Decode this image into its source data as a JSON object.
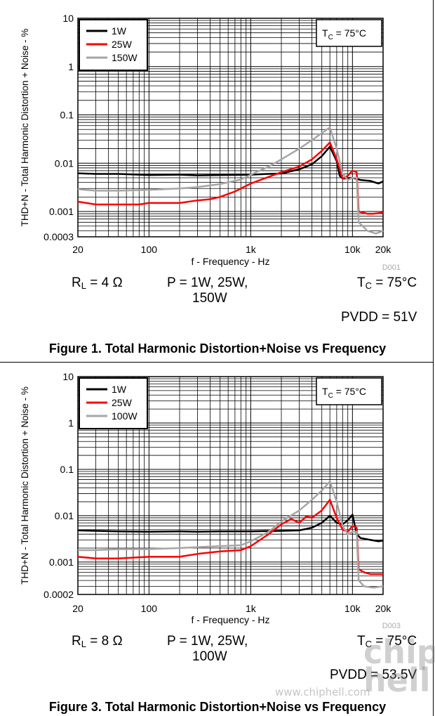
{
  "chart_data": [
    {
      "type": "line",
      "xscale": "log",
      "yscale": "log",
      "xlim": [
        20,
        20000
      ],
      "ylim": [
        0.0003,
        10
      ],
      "xticks": [
        "20",
        "100",
        "1k",
        "10k",
        "20k"
      ],
      "yticks": [
        "10",
        "1",
        "0.1",
        "0.01",
        "0.001",
        "0.0003"
      ],
      "xlabel": "f - Frequency - Hz",
      "ylabel": "THD+N - Total Harmonic Distortion + Noise - %",
      "legend": [
        "1W",
        "25W",
        "150W"
      ],
      "legend_position": "top-left",
      "annotation": "T_C = 75°C",
      "code": "D001",
      "grid": true,
      "series": [
        {
          "name": "1W",
          "color": "#000000",
          "points": [
            [
              20,
              0.0062
            ],
            [
              30,
              0.006
            ],
            [
              50,
              0.006
            ],
            [
              100,
              0.0057
            ],
            [
              200,
              0.0058
            ],
            [
              300,
              0.0056
            ],
            [
              500,
              0.0057
            ],
            [
              1000,
              0.0058
            ],
            [
              1500,
              0.006
            ],
            [
              2000,
              0.0061
            ],
            [
              3000,
              0.0075
            ],
            [
              4000,
              0.0095
            ],
            [
              5000,
              0.014
            ],
            [
              6000,
              0.022
            ],
            [
              7000,
              0.011
            ],
            [
              7500,
              0.0055
            ],
            [
              8000,
              0.0048
            ],
            [
              10000,
              0.005
            ],
            [
              12000,
              0.0045
            ],
            [
              15000,
              0.0043
            ],
            [
              18000,
              0.0038
            ],
            [
              20000,
              0.0042
            ]
          ]
        },
        {
          "name": "25W",
          "color": "#ff0000",
          "points": [
            [
              20,
              0.0016
            ],
            [
              30,
              0.0014
            ],
            [
              50,
              0.0014
            ],
            [
              80,
              0.0014
            ],
            [
              100,
              0.0015
            ],
            [
              200,
              0.0015
            ],
            [
              300,
              0.0017
            ],
            [
              400,
              0.0018
            ],
            [
              500,
              0.002
            ],
            [
              700,
              0.0026
            ],
            [
              1000,
              0.0038
            ],
            [
              1500,
              0.0052
            ],
            [
              2000,
              0.0065
            ],
            [
              3000,
              0.0085
            ],
            [
              4000,
              0.012
            ],
            [
              5000,
              0.018
            ],
            [
              6000,
              0.027
            ],
            [
              7000,
              0.012
            ],
            [
              8000,
              0.0048
            ],
            [
              9000,
              0.0055
            ],
            [
              10000,
              0.007
            ],
            [
              11000,
              0.0065
            ],
            [
              11500,
              0.001
            ],
            [
              14000,
              0.0009
            ],
            [
              16000,
              0.0009
            ],
            [
              20000,
              0.00095
            ]
          ]
        },
        {
          "name": "150W",
          "color": "#a6a6a6",
          "points": [
            [
              20,
              0.0029
            ],
            [
              30,
              0.0027
            ],
            [
              50,
              0.0027
            ],
            [
              100,
              0.0028
            ],
            [
              200,
              0.003
            ],
            [
              300,
              0.0032
            ],
            [
              500,
              0.0037
            ],
            [
              800,
              0.0046
            ],
            [
              1000,
              0.0058
            ],
            [
              1500,
              0.0085
            ],
            [
              2000,
              0.012
            ],
            [
              3000,
              0.02
            ],
            [
              4000,
              0.03
            ],
            [
              5000,
              0.042
            ],
            [
              6000,
              0.055
            ],
            [
              7000,
              0.02
            ],
            [
              8000,
              0.006
            ],
            [
              9000,
              0.0045
            ],
            [
              10000,
              0.005
            ],
            [
              11000,
              0.005
            ],
            [
              11500,
              0.0006
            ],
            [
              14000,
              0.0004
            ],
            [
              17000,
              0.00035
            ],
            [
              20000,
              0.0004
            ]
          ]
        }
      ]
    },
    {
      "type": "line",
      "xscale": "log",
      "yscale": "log",
      "xlim": [
        20,
        20000
      ],
      "ylim": [
        0.0002,
        10
      ],
      "xticks": [
        "20",
        "100",
        "1k",
        "10k",
        "20k"
      ],
      "yticks": [
        "10",
        "1",
        "0.1",
        "0.01",
        "0.001",
        "0.0002"
      ],
      "xlabel": "f - Frequency - Hz",
      "ylabel": "THD+N - Total Harmonic Distortion + Noise - %",
      "legend": [
        "1W",
        "25W",
        "100W"
      ],
      "legend_position": "top-left",
      "annotation": "T_C = 75°C",
      "code": "D003",
      "grid": true,
      "series": [
        {
          "name": "1W",
          "color": "#000000",
          "points": [
            [
              20,
              0.0048
            ],
            [
              30,
              0.0047
            ],
            [
              50,
              0.0046
            ],
            [
              100,
              0.0045
            ],
            [
              200,
              0.0046
            ],
            [
              300,
              0.0045
            ],
            [
              500,
              0.0046
            ],
            [
              1000,
              0.0046
            ],
            [
              2000,
              0.0047
            ],
            [
              3000,
              0.0048
            ],
            [
              4000,
              0.0055
            ],
            [
              5000,
              0.007
            ],
            [
              6000,
              0.01
            ],
            [
              7000,
              0.007
            ],
            [
              8000,
              0.0065
            ],
            [
              9000,
              0.008
            ],
            [
              10000,
              0.0105
            ],
            [
              11000,
              0.004
            ],
            [
              12000,
              0.0033
            ],
            [
              15000,
              0.003
            ],
            [
              18000,
              0.0028
            ],
            [
              20000,
              0.0029
            ]
          ]
        },
        {
          "name": "25W",
          "color": "#ff0000",
          "points": [
            [
              20,
              0.0013
            ],
            [
              30,
              0.0012
            ],
            [
              50,
              0.0012
            ],
            [
              100,
              0.0013
            ],
            [
              200,
              0.0013
            ],
            [
              300,
              0.0015
            ],
            [
              500,
              0.0017
            ],
            [
              800,
              0.0018
            ],
            [
              1000,
              0.0022
            ],
            [
              1500,
              0.004
            ],
            [
              2000,
              0.0065
            ],
            [
              2500,
              0.0085
            ],
            [
              3000,
              0.007
            ],
            [
              3500,
              0.0095
            ],
            [
              4000,
              0.009
            ],
            [
              5000,
              0.013
            ],
            [
              6000,
              0.022
            ],
            [
              7000,
              0.009
            ],
            [
              8000,
              0.005
            ],
            [
              9000,
              0.0045
            ],
            [
              10000,
              0.006
            ],
            [
              11000,
              0.0055
            ],
            [
              11500,
              0.0007
            ],
            [
              13000,
              0.0006
            ],
            [
              15000,
              0.00055
            ],
            [
              20000,
              0.00055
            ]
          ]
        },
        {
          "name": "100W",
          "color": "#a6a6a6",
          "points": [
            [
              20,
              0.0018
            ],
            [
              30,
              0.0018
            ],
            [
              50,
              0.0019
            ],
            [
              100,
              0.0019
            ],
            [
              200,
              0.002
            ],
            [
              300,
              0.0021
            ],
            [
              500,
              0.0022
            ],
            [
              800,
              0.0023
            ],
            [
              1000,
              0.0028
            ],
            [
              1500,
              0.0045
            ],
            [
              2000,
              0.0075
            ],
            [
              3000,
              0.013
            ],
            [
              4000,
              0.022
            ],
            [
              5000,
              0.035
            ],
            [
              6000,
              0.055
            ],
            [
              7000,
              0.02
            ],
            [
              8000,
              0.006
            ],
            [
              9000,
              0.004
            ],
            [
              10000,
              0.0045
            ],
            [
              11000,
              0.0045
            ],
            [
              11500,
              0.0004
            ],
            [
              13000,
              0.0003
            ],
            [
              16000,
              0.00028
            ],
            [
              20000,
              0.0003
            ]
          ]
        }
      ]
    }
  ],
  "figures": [
    {
      "rl_label": "R",
      "rl_sub": "L",
      "rl_value": " = 4 Ω",
      "power_line1": "P = 1W, 25W,",
      "power_line2": "150W",
      "tc_label": "T",
      "tc_sub": "C",
      "tc_value": " = 75°C",
      "pvdd": "PVDD = 51V",
      "caption": "Figure 1. Total Harmonic Distortion+Noise vs Frequency"
    },
    {
      "rl_label": "R",
      "rl_sub": "L",
      "rl_value": " = 8 Ω",
      "power_line1": "P = 1W, 25W,",
      "power_line2": "100W",
      "tc_label": "T",
      "tc_sub": "C",
      "tc_value": " = 75°C",
      "pvdd": "PVDD = 53.5V",
      "caption": "Figure 3. Total Harmonic Distortion+Noise vs Frequency"
    }
  ],
  "watermark": {
    "url": "www.chiphell.com",
    "logo": "chip hell"
  }
}
